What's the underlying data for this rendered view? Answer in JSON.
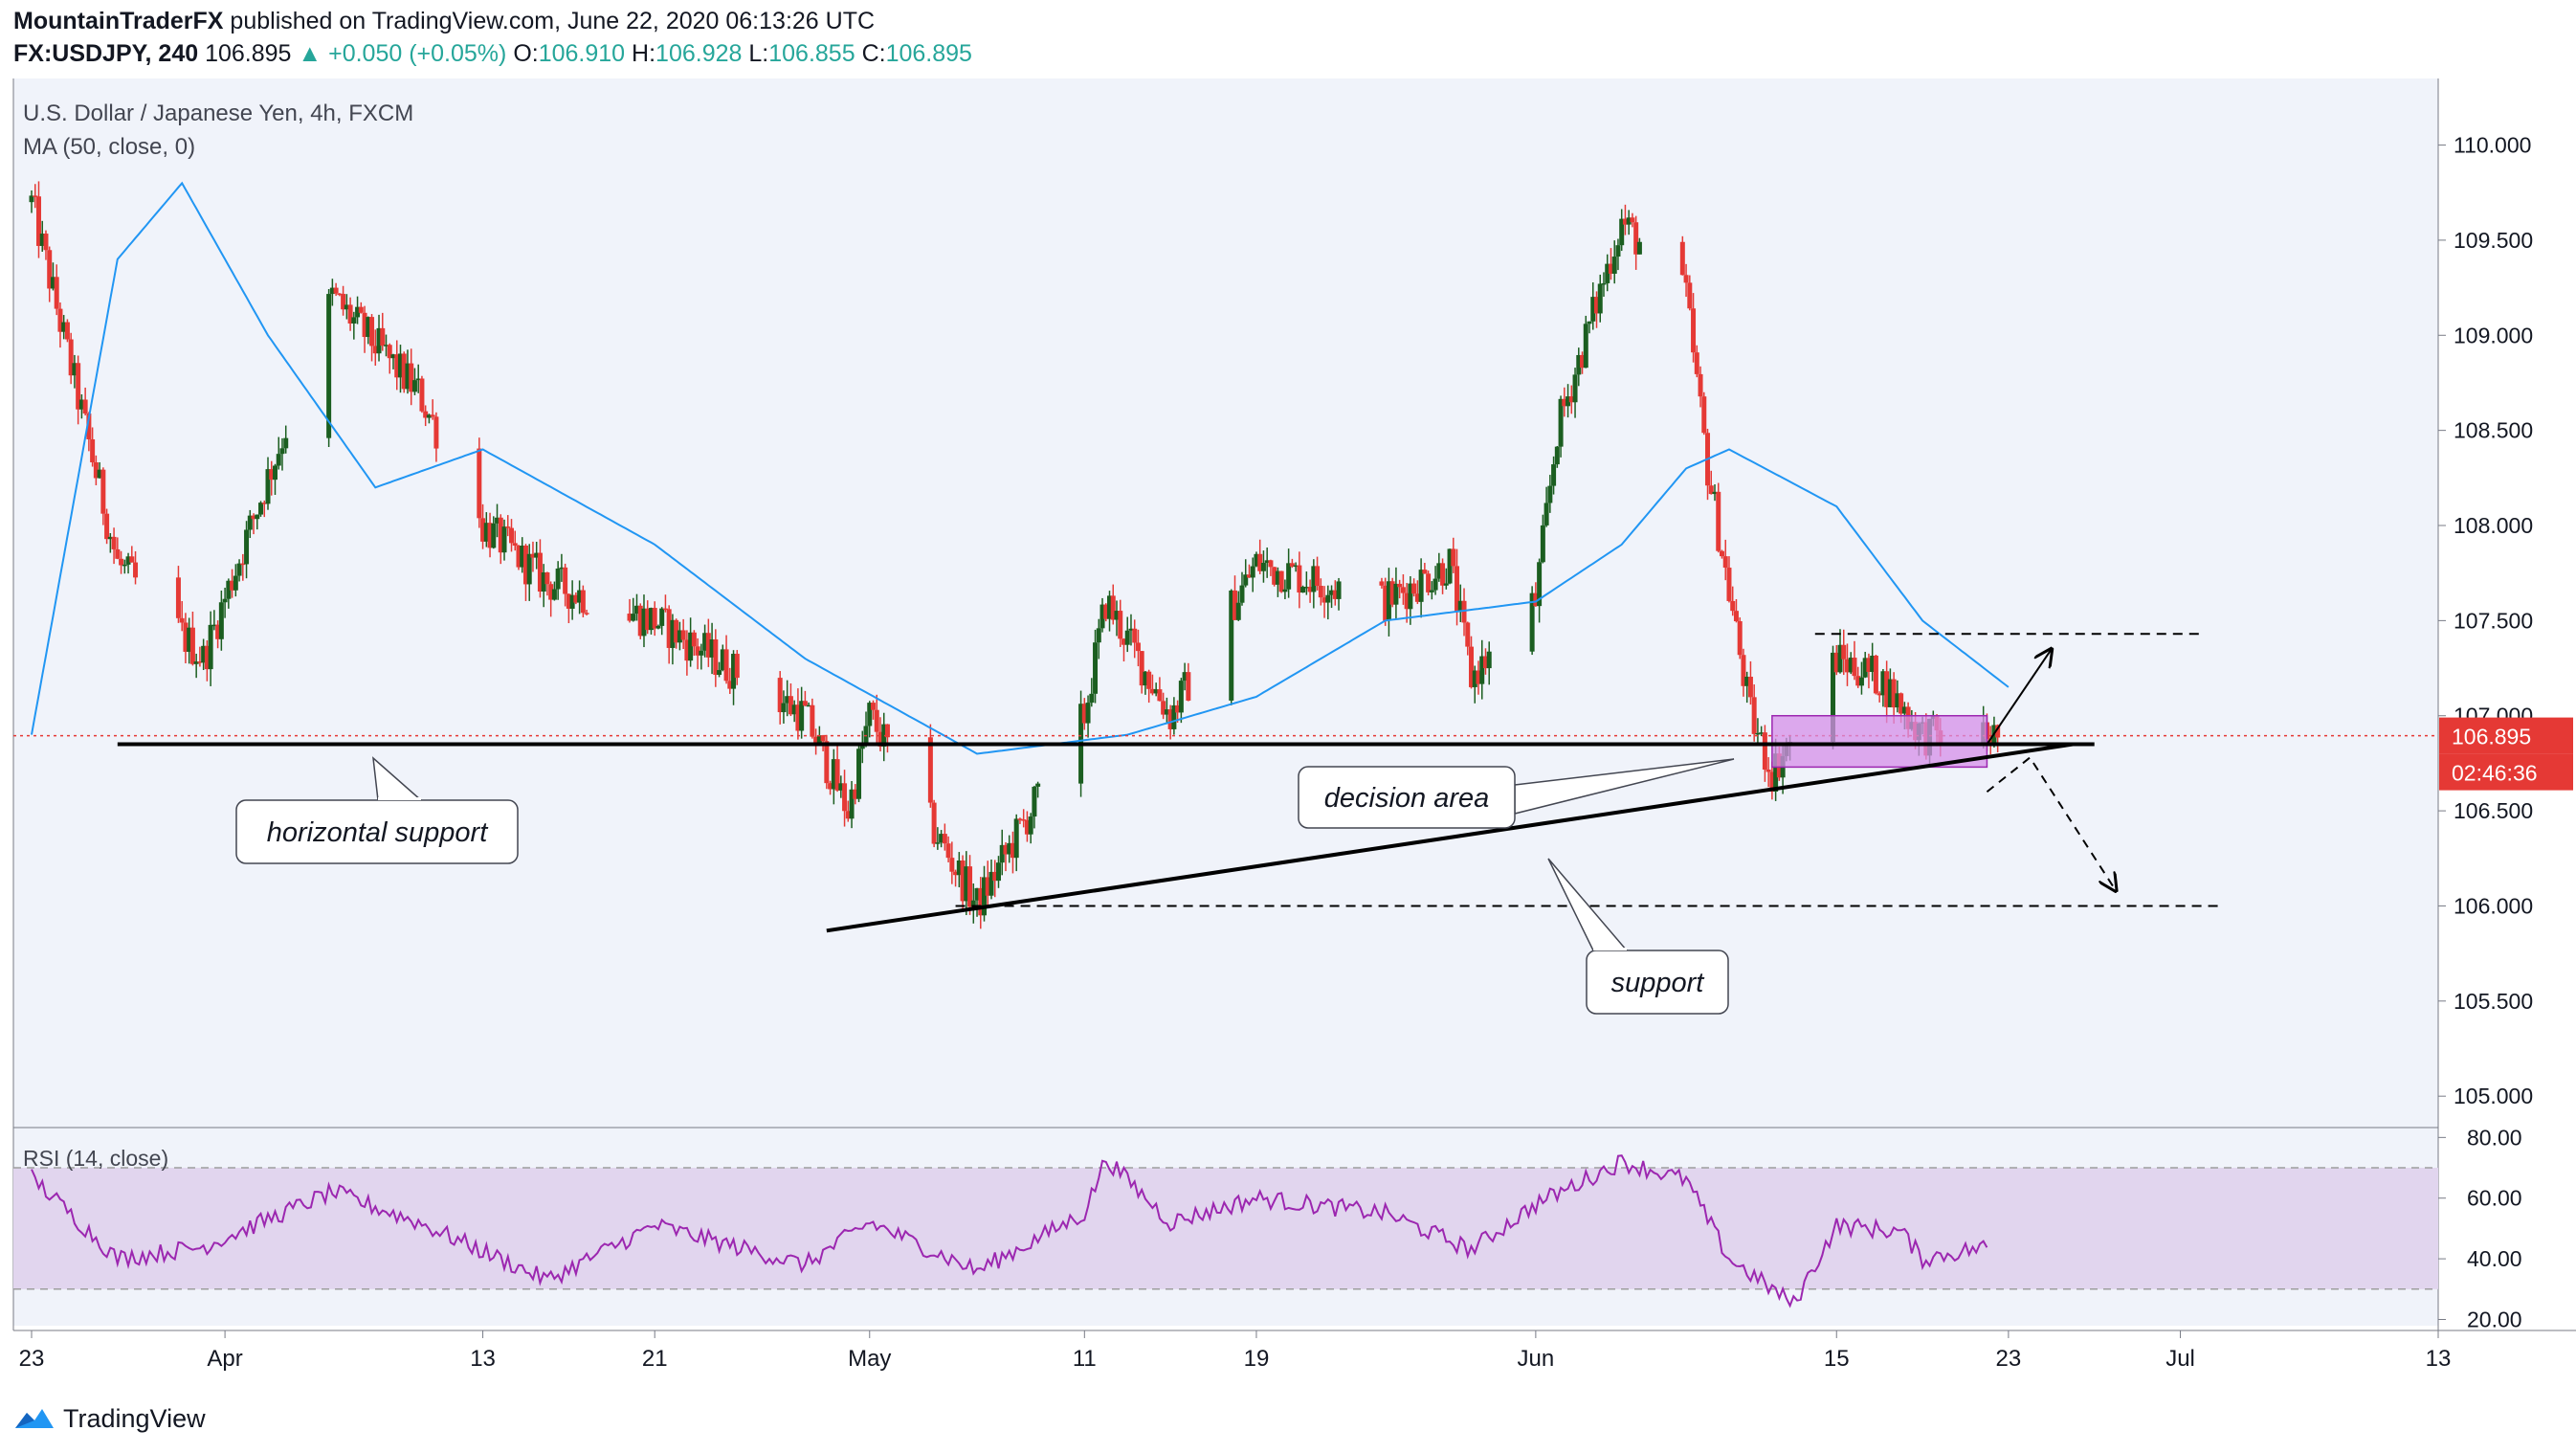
{
  "header": {
    "author": "MountainTraderFX",
    "published": "published on TradingView.com, June 22, 2020 06:13:26 UTC",
    "symbol": "FX:USDJPY, 240",
    "price": "106.895",
    "change": "▲ +0.050 (+0.05%)",
    "o_label": "O:",
    "o": "106.910",
    "h_label": "H:",
    "h": "106.928",
    "l_label": "L:",
    "l": "106.855",
    "c_label": "C:",
    "c": "106.895"
  },
  "legend": {
    "title": "U.S. Dollar / Japanese Yen, 4h, FXCM",
    "ma": "MA (50, close, 0)",
    "rsi": "RSI (14, close)"
  },
  "annotations": {
    "horizontal_support": "horizontal support",
    "decision_area": "decision area",
    "support": "support"
  },
  "price_labels": {
    "last": "106.895",
    "countdown": "02:46:36"
  },
  "footer": {
    "brand": "TradingView"
  },
  "colors": {
    "up": "#26a69a",
    "bull_candle": "#1b5e20",
    "bear_candle": "#e53935",
    "ma_line": "#2196f3",
    "rsi_line": "#9c27b0",
    "rsi_band": "#e1d5ee",
    "box_fill": "#d68fe8",
    "box_border": "#9c27b0",
    "price_tag": "#e53935",
    "background": "#ffffff",
    "pane": "#f0f3fa"
  },
  "chart_data": {
    "type": "candlestick",
    "title": "U.S. Dollar / Japanese Yen, 4h, FXCM",
    "y_ticks": [
      "110.000",
      "109.500",
      "109.000",
      "108.500",
      "108.000",
      "107.500",
      "107.000",
      "106.500",
      "106.000",
      "105.500",
      "105.000"
    ],
    "ylim": [
      104.85,
      110.35
    ],
    "x_ticks": [
      "23",
      "Apr",
      "13",
      "21",
      "May",
      "11",
      "19",
      "Jun",
      "15",
      "23",
      "Jul",
      "13"
    ],
    "date_range": [
      "2020-03-23",
      "2020-07-13"
    ],
    "key_points": [
      {
        "date": "2020-03-23",
        "price": 109.7
      },
      {
        "date": "2020-03-27",
        "price": 107.8
      },
      {
        "date": "2020-03-31",
        "price": 107.3
      },
      {
        "date": "2020-04-06",
        "price": 109.2
      },
      {
        "date": "2020-04-10",
        "price": 108.7
      },
      {
        "date": "2020-04-13",
        "price": 108.0
      },
      {
        "date": "2020-04-16",
        "price": 107.7
      },
      {
        "date": "2020-04-21",
        "price": 107.5
      },
      {
        "date": "2020-04-28",
        "price": 107.0
      },
      {
        "date": "2020-04-30",
        "price": 106.5
      },
      {
        "date": "2020-05-01",
        "price": 107.0
      },
      {
        "date": "2020-05-06",
        "price": 106.0
      },
      {
        "date": "2020-05-11",
        "price": 107.0
      },
      {
        "date": "2020-05-12",
        "price": 107.6
      },
      {
        "date": "2020-05-15",
        "price": 107.0
      },
      {
        "date": "2020-05-19",
        "price": 107.8
      },
      {
        "date": "2020-05-25",
        "price": 107.6
      },
      {
        "date": "2020-05-28",
        "price": 107.8
      },
      {
        "date": "2020-05-29",
        "price": 107.2
      },
      {
        "date": "2020-06-01",
        "price": 107.6
      },
      {
        "date": "2020-06-02",
        "price": 108.5
      },
      {
        "date": "2020-06-05",
        "price": 109.6
      },
      {
        "date": "2020-06-08",
        "price": 109.2
      },
      {
        "date": "2020-06-09",
        "price": 108.3
      },
      {
        "date": "2020-06-11",
        "price": 107.0
      },
      {
        "date": "2020-06-12",
        "price": 106.7
      },
      {
        "date": "2020-06-15",
        "price": 107.3
      },
      {
        "date": "2020-06-17",
        "price": 107.2
      },
      {
        "date": "2020-06-19",
        "price": 106.9
      },
      {
        "date": "2020-06-22",
        "price": 106.895
      }
    ],
    "series": [
      {
        "name": "MA (50, close, 0)",
        "points": [
          {
            "date": "2020-03-23",
            "price": 106.9
          },
          {
            "date": "2020-03-27",
            "price": 109.4
          },
          {
            "date": "2020-03-30",
            "price": 109.8
          },
          {
            "date": "2020-04-03",
            "price": 109.0
          },
          {
            "date": "2020-04-08",
            "price": 108.2
          },
          {
            "date": "2020-04-13",
            "price": 108.4
          },
          {
            "date": "2020-04-21",
            "price": 107.9
          },
          {
            "date": "2020-04-28",
            "price": 107.3
          },
          {
            "date": "2020-05-06",
            "price": 106.8
          },
          {
            "date": "2020-05-13",
            "price": 106.9
          },
          {
            "date": "2020-05-19",
            "price": 107.1
          },
          {
            "date": "2020-05-25",
            "price": 107.5
          },
          {
            "date": "2020-06-01",
            "price": 107.6
          },
          {
            "date": "2020-06-05",
            "price": 107.9
          },
          {
            "date": "2020-06-08",
            "price": 108.3
          },
          {
            "date": "2020-06-10",
            "price": 108.4
          },
          {
            "date": "2020-06-15",
            "price": 108.1
          },
          {
            "date": "2020-06-19",
            "price": 107.5
          },
          {
            "date": "2020-06-23",
            "price": 107.15
          }
        ]
      },
      {
        "name": "RSI (14, close)",
        "pane": "rsi",
        "ylim": [
          17,
          82
        ],
        "y_ticks": [
          "80.00",
          "60.00",
          "40.00",
          "20.00"
        ],
        "bands": [
          30,
          70
        ],
        "points": [
          {
            "date": "2020-03-23",
            "price": 67
          },
          {
            "date": "2020-03-27",
            "price": 40
          },
          {
            "date": "2020-03-31",
            "price": 44
          },
          {
            "date": "2020-04-06",
            "price": 62
          },
          {
            "date": "2020-04-10",
            "price": 52
          },
          {
            "date": "2020-04-16",
            "price": 33
          },
          {
            "date": "2020-04-21",
            "price": 51
          },
          {
            "date": "2020-04-28",
            "price": 38
          },
          {
            "date": "2020-05-01",
            "price": 52
          },
          {
            "date": "2020-05-06",
            "price": 36
          },
          {
            "date": "2020-05-11",
            "price": 55
          },
          {
            "date": "2020-05-12",
            "price": 73
          },
          {
            "date": "2020-05-15",
            "price": 52
          },
          {
            "date": "2020-05-19",
            "price": 60
          },
          {
            "date": "2020-05-25",
            "price": 55
          },
          {
            "date": "2020-05-29",
            "price": 43
          },
          {
            "date": "2020-06-01",
            "price": 58
          },
          {
            "date": "2020-06-05",
            "price": 72
          },
          {
            "date": "2020-06-08",
            "price": 66
          },
          {
            "date": "2020-06-10",
            "price": 40
          },
          {
            "date": "2020-06-13",
            "price": 25
          },
          {
            "date": "2020-06-15",
            "price": 51
          },
          {
            "date": "2020-06-18",
            "price": 49
          },
          {
            "date": "2020-06-19",
            "price": 40
          },
          {
            "date": "2020-06-22",
            "price": 44
          }
        ]
      }
    ],
    "lines": [
      {
        "name": "horizontal support",
        "start": {
          "date": "2020-03-27",
          "price": 106.85
        },
        "end": {
          "date": "2020-06-27",
          "price": 106.85
        }
      },
      {
        "name": "support trendline",
        "start": {
          "date": "2020-04-29",
          "price": 105.87
        },
        "end": {
          "date": "2020-06-26",
          "price": 106.85
        }
      },
      {
        "name": "resistance dashed",
        "start": {
          "date": "2020-06-14",
          "price": 107.43
        },
        "end": {
          "date": "2020-07-02",
          "price": 107.43
        }
      },
      {
        "name": "support dashed",
        "start": {
          "date": "2020-05-05",
          "price": 106.0
        },
        "end": {
          "date": "2020-07-03",
          "price": 106.0
        }
      }
    ],
    "decision_area_box": {
      "date_start": "2020-06-12",
      "date_end": "2020-06-22",
      "price_top": 107.0,
      "price_bottom": 106.73
    },
    "grid": false,
    "legend_position": "top-left"
  }
}
